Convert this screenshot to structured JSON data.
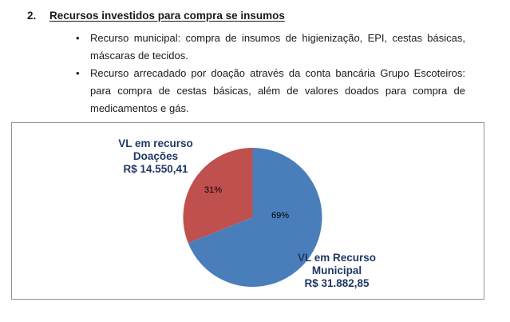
{
  "document": {
    "heading_number": "2.",
    "heading": "Recursos investidos para compra se insumos",
    "bullet_glyph": "•",
    "bullets": [
      "Recurso municipal: compra de insumos de higienização, EPI, cestas básicas, máscaras de tecidos.",
      "Recurso arrecadado por doação através da conta bancária Grupo Escoteiros: para compra de cestas básicas, além de valores doados para compra de medicamentos e gás."
    ]
  },
  "chart_data": {
    "type": "pie",
    "title": "",
    "start_angle_deg": 0,
    "direction": "clockwise",
    "label_color": "#1F3864",
    "percent_label_color": "#000000",
    "slices": [
      {
        "name": "VL em Recurso Municipal",
        "value": 31882.85,
        "value_label": "R$ 31.882,85",
        "percent": 69,
        "percent_label": "69%",
        "color": "#4A7EBB",
        "label_lines": [
          "VL em Recurso",
          "Municipal",
          "R$ 31.882,85"
        ]
      },
      {
        "name": "VL em recurso Doações",
        "value": 14550.41,
        "value_label": "R$ 14.550,41",
        "percent": 31,
        "percent_label": "31%",
        "color": "#C0504D",
        "label_lines": [
          "VL em recurso",
          "Doações",
          "R$ 14.550,41"
        ]
      }
    ]
  }
}
